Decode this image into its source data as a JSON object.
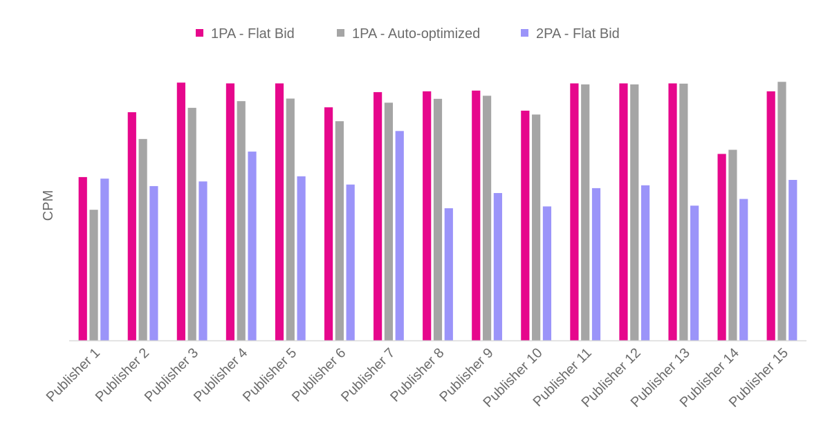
{
  "chart_data": {
    "type": "bar",
    "title": "",
    "xlabel": "",
    "ylabel": "CPM",
    "ylim": [
      0,
      100
    ],
    "grid": false,
    "y_tick_labels": false,
    "legend_position": "top",
    "categories": [
      "Publisher 1",
      "Publisher 2",
      "Publisher 3",
      "Publisher 4",
      "Publisher 5",
      "Publisher 6",
      "Publisher 7",
      "Publisher 8",
      "Publisher 9",
      "Publisher 10",
      "Publisher 11",
      "Publisher 12",
      "Publisher 13",
      "Publisher 14",
      "Publisher 15"
    ],
    "series": [
      {
        "name": "1PA - Flat Bid",
        "color": "#E6078C",
        "values": [
          63.6,
          88.8,
          100.3,
          100.0,
          100.0,
          90.7,
          96.6,
          96.9,
          97.2,
          89.4,
          100.0,
          100.0,
          100.0,
          72.6,
          96.9
        ]
      },
      {
        "name": "1PA - Auto-optimized",
        "color": "#A5A5A5",
        "values": [
          50.9,
          78.4,
          90.5,
          93.1,
          94.1,
          85.3,
          92.5,
          94.0,
          95.2,
          87.9,
          99.6,
          99.6,
          99.9,
          74.2,
          100.6
        ]
      },
      {
        "name": "2PA - Flat Bid",
        "color": "#9B94F9",
        "values": [
          63.0,
          60.1,
          61.9,
          73.5,
          63.9,
          60.7,
          81.5,
          51.5,
          57.4,
          52.2,
          59.3,
          60.4,
          52.5,
          55.1,
          62.5
        ]
      }
    ]
  }
}
